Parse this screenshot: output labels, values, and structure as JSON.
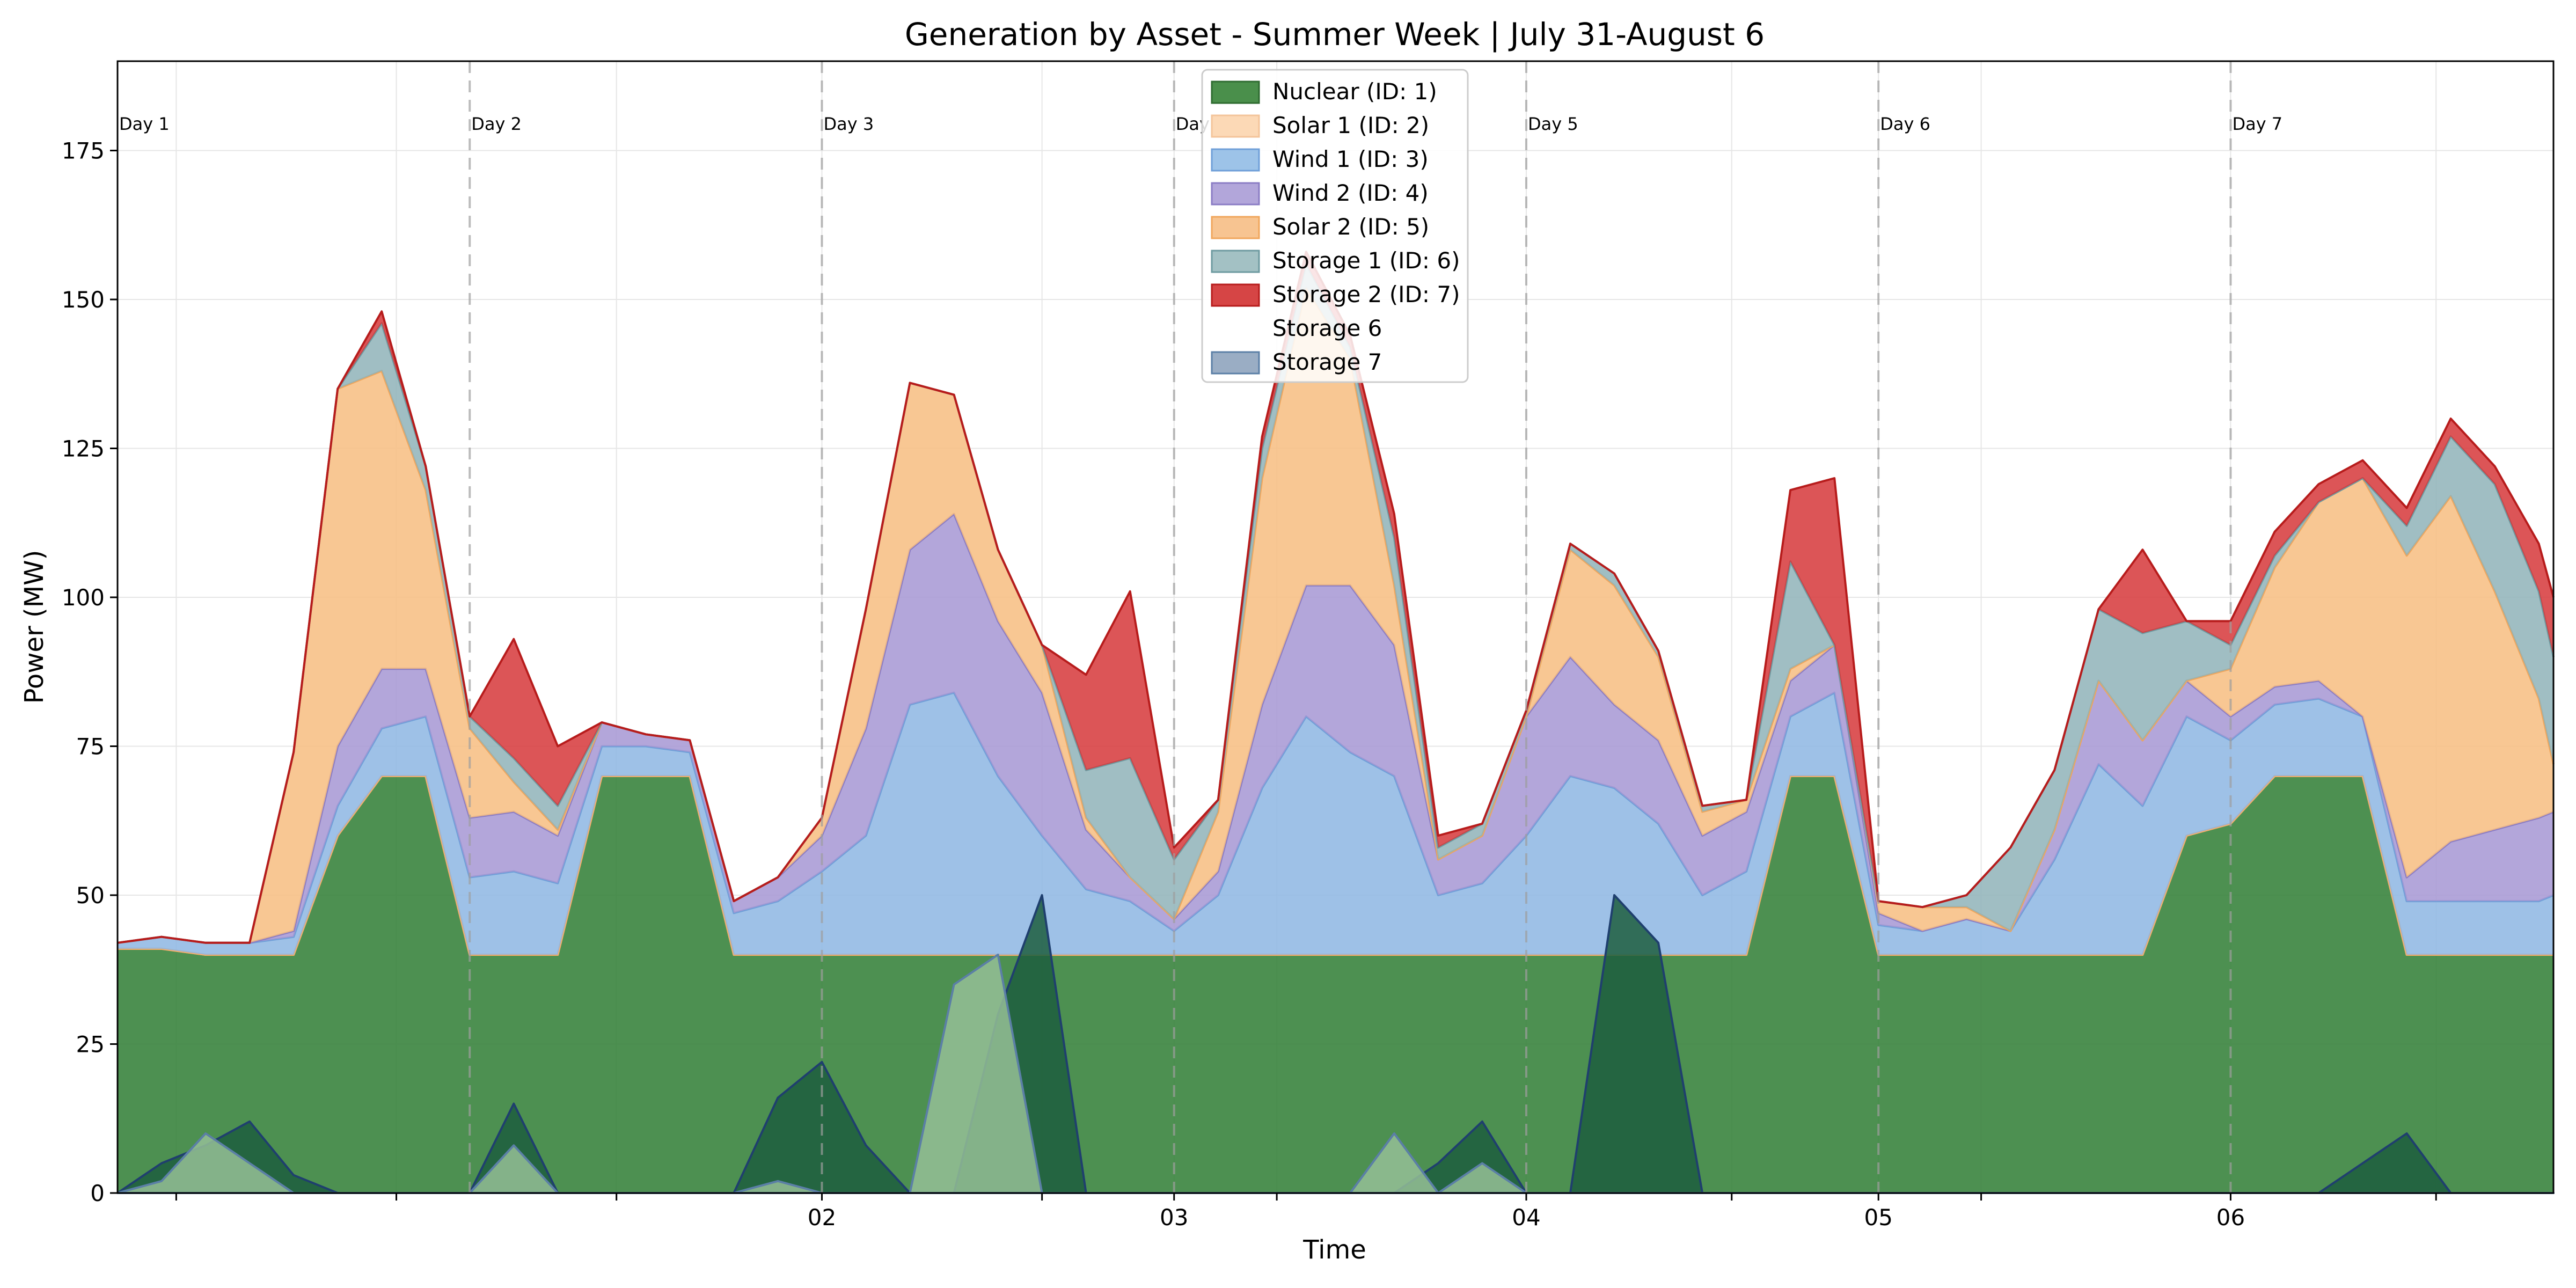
{
  "chart_data": {
    "type": "area",
    "stacked": true,
    "title": "Generation by Asset - Summer Week | July 31-August 6",
    "xlabel": "Time",
    "ylabel": "Power (MW)",
    "ylim": [
      0,
      190
    ],
    "yticks": [
      0,
      25,
      50,
      75,
      100,
      125,
      150,
      175
    ],
    "grid": true,
    "legend_position": "top-center",
    "x_hours": [
      0,
      3,
      6,
      9,
      12,
      15,
      18,
      21,
      24,
      27,
      30,
      33,
      36,
      39,
      42,
      45,
      48,
      51,
      54,
      57,
      60,
      63,
      66,
      69,
      72,
      75,
      78,
      81,
      84,
      87,
      90,
      93,
      96,
      99,
      102,
      105,
      108,
      111,
      114,
      117,
      120,
      123,
      126,
      129,
      132,
      135,
      138,
      141,
      144,
      147,
      150,
      153,
      156,
      159,
      162,
      165,
      166
    ],
    "xtick_labels": [
      {
        "label": "02",
        "hour": 48
      },
      {
        "label": "03",
        "hour": 72
      },
      {
        "label": "04",
        "hour": 96
      },
      {
        "label": "05",
        "hour": 120
      },
      {
        "label": "06",
        "hour": 144
      }
    ],
    "minor_tick_hours": [
      4,
      19,
      34,
      63,
      79,
      110,
      127,
      158
    ],
    "day_markers": [
      {
        "label": "Day 1",
        "hour": 0
      },
      {
        "label": "Day 2",
        "hour": 24
      },
      {
        "label": "Day 3",
        "hour": 48
      },
      {
        "label": "Day 4",
        "hour": 72
      },
      {
        "label": "Day 5",
        "hour": 96
      },
      {
        "label": "Day 6",
        "hour": 120
      },
      {
        "label": "Day 7",
        "hour": 144
      }
    ],
    "series": [
      {
        "name": "Nuclear (ID: 1)",
        "kind": "stack",
        "fill": "#2e7d32",
        "stroke": "#c8b98a",
        "values": [
          41,
          41,
          40,
          40,
          40,
          60,
          70,
          70,
          40,
          40,
          40,
          70,
          70,
          70,
          40,
          40,
          40,
          40,
          40,
          40,
          40,
          40,
          40,
          40,
          40,
          40,
          40,
          40,
          40,
          40,
          40,
          40,
          40,
          40,
          40,
          40,
          40,
          40,
          70,
          70,
          40,
          40,
          40,
          40,
          40,
          40,
          40,
          60,
          62,
          70,
          70,
          70,
          40,
          40,
          40,
          40,
          40
        ]
      },
      {
        "name": "Solar 1 (ID: 2)",
        "kind": "stack",
        "fill": "#fcc89a",
        "stroke": "#f6ad6a",
        "values": [
          0,
          0,
          0,
          0,
          0,
          0,
          0,
          0,
          0,
          0,
          0,
          0,
          0,
          0,
          0,
          0,
          0,
          0,
          0,
          0,
          0,
          0,
          0,
          0,
          0,
          0,
          0,
          0,
          0,
          0,
          0,
          0,
          0,
          0,
          0,
          0,
          0,
          0,
          0,
          0,
          0,
          0,
          0,
          0,
          0,
          0,
          0,
          0,
          0,
          0,
          0,
          0,
          0,
          0,
          0,
          0,
          0
        ]
      },
      {
        "name": "Wind 1 (ID: 3)",
        "kind": "stack",
        "fill": "#8db6e3",
        "stroke": "#6f9fd8",
        "values": [
          1,
          2,
          2,
          2,
          3,
          5,
          8,
          10,
          13,
          14,
          12,
          5,
          5,
          4,
          7,
          9,
          14,
          20,
          42,
          44,
          30,
          20,
          11,
          9,
          4,
          10,
          28,
          40,
          34,
          30,
          10,
          12,
          20,
          30,
          28,
          22,
          10,
          14,
          10,
          14,
          5,
          4,
          6,
          4,
          16,
          32,
          25,
          20,
          14,
          12,
          13,
          10,
          9,
          9,
          9,
          9,
          10
        ]
      },
      {
        "name": "Wind 2 (ID: 4)",
        "kind": "stack",
        "fill": "#a696d4",
        "stroke": "#8a7cc4",
        "values": [
          0,
          0,
          0,
          0,
          1,
          10,
          10,
          8,
          10,
          10,
          8,
          4,
          2,
          2,
          2,
          4,
          6,
          18,
          26,
          30,
          26,
          24,
          10,
          4,
          2,
          4,
          14,
          22,
          28,
          22,
          6,
          8,
          20,
          20,
          14,
          14,
          10,
          10,
          6,
          8,
          2,
          0,
          0,
          0,
          5,
          14,
          11,
          6,
          4,
          3,
          3,
          0,
          4,
          10,
          12,
          14,
          14
        ]
      },
      {
        "name": "Solar 2 (ID: 5)",
        "kind": "stack",
        "fill": "#f7bd80",
        "stroke": "#f0a65c",
        "values": [
          0,
          0,
          0,
          0,
          30,
          60,
          50,
          30,
          15,
          5,
          1,
          0,
          0,
          0,
          0,
          0,
          3,
          20,
          28,
          20,
          12,
          8,
          2,
          0,
          0,
          10,
          38,
          50,
          38,
          10,
          0,
          0,
          0,
          18,
          20,
          14,
          4,
          2,
          2,
          0,
          2,
          4,
          2,
          0,
          0,
          0,
          0,
          0,
          8,
          20,
          30,
          40,
          54,
          58,
          40,
          20,
          8
        ]
      },
      {
        "name": "Storage 1 (ID: 6)",
        "kind": "stack",
        "fill": "#8fb3b8",
        "stroke": "#6d9aa0",
        "values": [
          0,
          0,
          0,
          0,
          0,
          0,
          8,
          4,
          2,
          4,
          4,
          0,
          0,
          0,
          0,
          0,
          0,
          0,
          0,
          0,
          0,
          0,
          8,
          20,
          10,
          2,
          5,
          4,
          2,
          8,
          2,
          2,
          1,
          1,
          2,
          1,
          1,
          0,
          18,
          0,
          0,
          0,
          2,
          14,
          10,
          12,
          18,
          10,
          4,
          2,
          0,
          0,
          5,
          10,
          18,
          18,
          18
        ]
      },
      {
        "name": "Storage 2 (ID: 7)",
        "kind": "stack",
        "fill": "#d6373a",
        "stroke": "#b71c1c",
        "values": [
          0,
          0,
          0,
          0,
          0,
          0,
          2,
          0,
          0,
          20,
          10,
          0,
          0,
          0,
          0,
          0,
          0,
          0,
          0,
          0,
          0,
          0,
          16,
          28,
          2,
          0,
          2,
          2,
          2,
          4,
          2,
          0,
          0,
          0,
          0,
          0,
          0,
          0,
          12,
          28,
          0,
          0,
          0,
          0,
          0,
          0,
          14,
          0,
          4,
          4,
          3,
          3,
          3,
          3,
          3,
          8,
          10
        ]
      },
      {
        "name": "Storage 6",
        "kind": "overlay",
        "fill": "#1d5e3e",
        "stroke": "#1f3f6e",
        "values": [
          0,
          5,
          8,
          12,
          3,
          0,
          0,
          0,
          0,
          15,
          0,
          0,
          0,
          0,
          0,
          16,
          22,
          8,
          0,
          0,
          30,
          50,
          0,
          0,
          0,
          0,
          0,
          0,
          0,
          0,
          5,
          12,
          0,
          0,
          50,
          42,
          0,
          0,
          0,
          0,
          0,
          0,
          0,
          0,
          0,
          0,
          0,
          0,
          0,
          0,
          0,
          5,
          10,
          0,
          0,
          0,
          0
        ]
      },
      {
        "name": "Storage 7",
        "kind": "overlay",
        "fill": "#95bf96",
        "stroke": "#5b7fa6",
        "values": [
          0,
          2,
          10,
          5,
          0,
          0,
          0,
          0,
          0,
          8,
          0,
          0,
          0,
          0,
          0,
          2,
          0,
          0,
          0,
          35,
          40,
          0,
          0,
          0,
          0,
          0,
          0,
          0,
          0,
          10,
          0,
          5,
          0,
          0,
          0,
          0,
          0,
          0,
          0,
          0,
          0,
          0,
          0,
          0,
          0,
          0,
          0,
          0,
          0,
          0,
          0,
          0,
          0,
          0,
          0,
          0,
          0
        ]
      }
    ],
    "legend_entries": [
      {
        "label": "Nuclear (ID: 1)",
        "color": "#4a8f4b",
        "edge": "#2e6b30"
      },
      {
        "label": "Solar 1 (ID: 2)",
        "color": "#fcd9b6",
        "edge": "#f3c49a"
      },
      {
        "label": "Wind 1 (ID: 3)",
        "color": "#9dc3e8",
        "edge": "#6f9fd8"
      },
      {
        "label": "Wind 2 (ID: 4)",
        "color": "#b2a6da",
        "edge": "#8a7cc4"
      },
      {
        "label": "Solar 2 (ID: 5)",
        "color": "#f7c491",
        "edge": "#f0a65c"
      },
      {
        "label": "Storage 1 (ID: 6)",
        "color": "#a3c1c4",
        "edge": "#6d9aa0"
      },
      {
        "label": "Storage 2 (ID: 7)",
        "color": "#d64545",
        "edge": "#b71c1c"
      },
      {
        "label": "Storage 6",
        "color": "#ffffff",
        "edge": "#ffffff"
      },
      {
        "label": "Storage 7",
        "color": "#9aadc4",
        "edge": "#5b7fa6"
      }
    ]
  }
}
